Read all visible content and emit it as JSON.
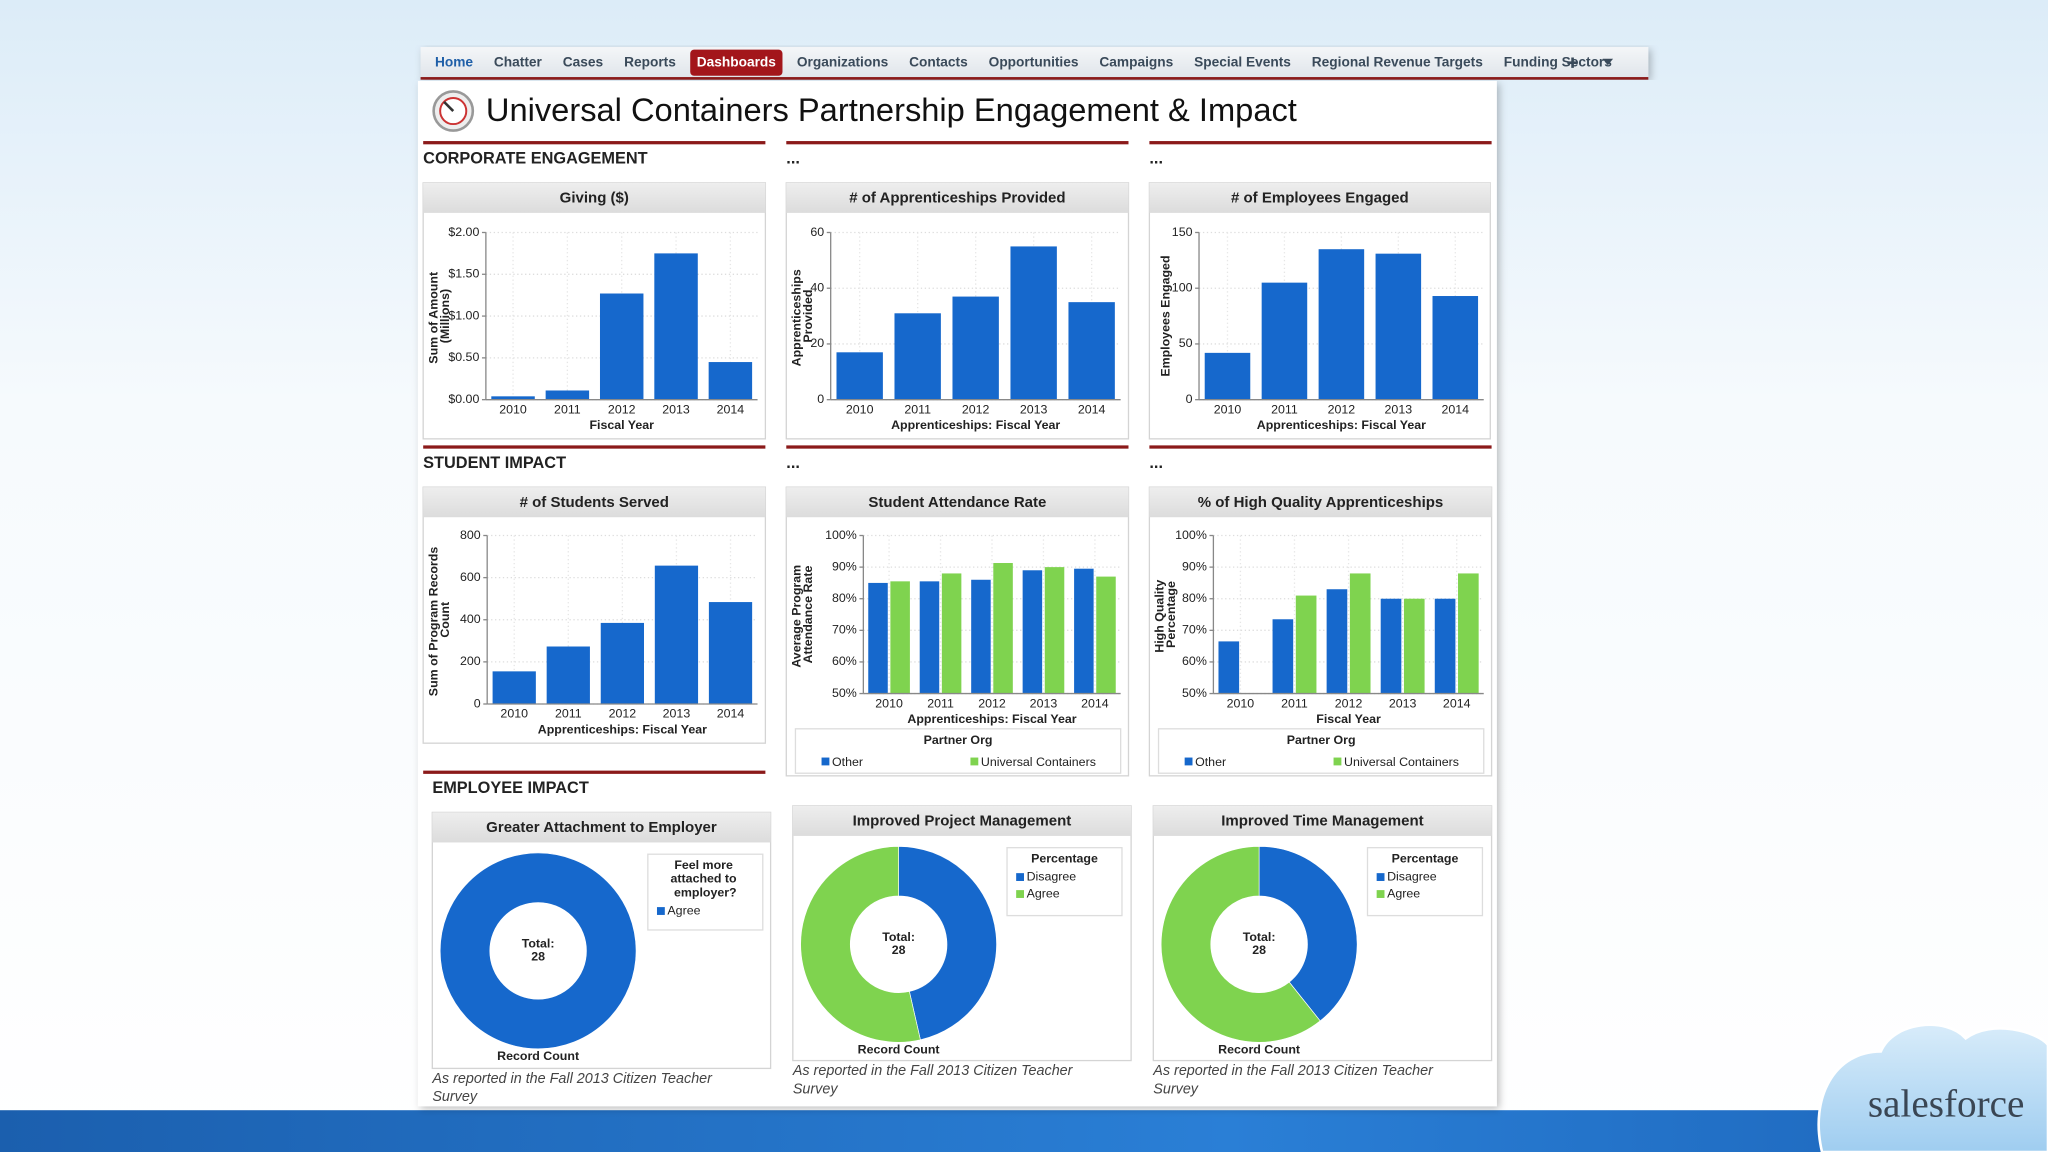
{
  "nav": [
    "Home",
    "Chatter",
    "Cases",
    "Reports",
    "Dashboards",
    "Organizations",
    "Contacts",
    "Opportunities",
    "Campaigns",
    "Special Events",
    "Regional Revenue Targets",
    "Funding Sectors"
  ],
  "active_nav": 4,
  "title": "Universal Containers Partnership Engagement & Impact",
  "section_headers": [
    "CORPORATE ENGAGEMENT",
    "...",
    "...",
    "STUDENT IMPACT",
    "...",
    "...",
    "EMPLOYEE IMPACT"
  ],
  "brand": "salesforce",
  "chart_data": [
    {
      "type": "bar",
      "title": "Giving ($)",
      "y_label": "Sum of Amount (Millions)",
      "x_label": "Fiscal Year",
      "categories": [
        "2010",
        "2011",
        "2012",
        "2013",
        "2014"
      ],
      "values": [
        0.04,
        0.11,
        1.27,
        1.75,
        0.45
      ],
      "color": "#1668cc",
      "ylim": [
        0,
        2
      ],
      "yticks": [
        {
          "value": 0,
          "label": "$0.00"
        },
        {
          "value": 0.5,
          "label": "$0.50"
        },
        {
          "value": 1,
          "label": "$1.00"
        },
        {
          "value": 1.5,
          "label": "$1.50"
        },
        {
          "value": 2,
          "label": "$2.00"
        }
      ],
      "grid": true
    },
    {
      "type": "bar",
      "title": "# of Apprenticeships Provided",
      "y_label": "Apprenticeships Provided",
      "x_label": "Apprenticeships: Fiscal Year",
      "categories": [
        "2010",
        "2011",
        "2012",
        "2013",
        "2014"
      ],
      "values": [
        17,
        31,
        37,
        55,
        35
      ],
      "color": "#1668cc",
      "ylim": [
        0,
        60
      ],
      "yticks": [
        0,
        20,
        40,
        60
      ],
      "grid": true
    },
    {
      "type": "bar",
      "title": "# of Employees Engaged",
      "y_label": "Employees Engaged",
      "x_label": "Apprenticeships: Fiscal Year",
      "categories": [
        "2010",
        "2011",
        "2012",
        "2013",
        "2014"
      ],
      "values": [
        42,
        105,
        135,
        131,
        93
      ],
      "color": "#1668cc",
      "ylim": [
        0,
        150
      ],
      "yticks": [
        0,
        50,
        100,
        150
      ],
      "grid": true
    },
    {
      "type": "bar",
      "title": "# of Students Served",
      "y_label": "Sum of Program Records Count",
      "x_label": "Apprenticeships: Fiscal Year",
      "categories": [
        "2010",
        "2011",
        "2012",
        "2013",
        "2014"
      ],
      "values": [
        155,
        273,
        385,
        657,
        484
      ],
      "color": "#1668cc",
      "ylim": [
        0,
        800
      ],
      "yticks": [
        0,
        200,
        400,
        600,
        800
      ],
      "grid": true
    },
    {
      "type": "bar",
      "title": "Student Attendance Rate",
      "y_label": "Average Program Attendance Rate",
      "x_label": "Apprenticeships: Fiscal Year",
      "categories": [
        "2010",
        "2011",
        "2012",
        "2013",
        "2014"
      ],
      "legend_title": "Partner Org",
      "series": [
        {
          "name": "Other",
          "color": "#1668cc",
          "values": [
            85,
            85.5,
            86,
            89,
            89.5
          ]
        },
        {
          "name": "Universal Containers",
          "color": "#7fd34f",
          "values": [
            85.5,
            88,
            91.3,
            90,
            87
          ]
        }
      ],
      "ylim": [
        50,
        100
      ],
      "yticks": [
        {
          "value": 50,
          "label": "50%"
        },
        {
          "value": 60,
          "label": "60%"
        },
        {
          "value": 70,
          "label": "70%"
        },
        {
          "value": 80,
          "label": "80%"
        },
        {
          "value": 90,
          "label": "90%"
        },
        {
          "value": 100,
          "label": "100%"
        }
      ],
      "grid": true
    },
    {
      "type": "bar",
      "title": "% of High Quality Apprenticeships",
      "y_label": "High Quality Percentage",
      "x_label": "Fiscal Year",
      "categories": [
        "2010",
        "2011",
        "2012",
        "2013",
        "2014"
      ],
      "legend_title": "Partner Org",
      "series": [
        {
          "name": "Other",
          "color": "#1668cc",
          "values": [
            66.5,
            73.5,
            83,
            80,
            80
          ]
        },
        {
          "name": "Universal Containers",
          "color": "#7fd34f",
          "values": [
            null,
            81,
            88,
            80,
            88
          ]
        }
      ],
      "ylim": [
        50,
        100
      ],
      "yticks": [
        {
          "value": 50,
          "label": "50%"
        },
        {
          "value": 60,
          "label": "60%"
        },
        {
          "value": 70,
          "label": "70%"
        },
        {
          "value": 80,
          "label": "80%"
        },
        {
          "value": 90,
          "label": "90%"
        },
        {
          "value": 100,
          "label": "100%"
        }
      ],
      "grid": true
    },
    {
      "type": "donut",
      "title": "Greater Attachment to Employer",
      "legend_title": "Feel more attached to employer?",
      "categories": [
        "Agree"
      ],
      "values": [
        28
      ],
      "colors": [
        "#1668cc"
      ],
      "center_label": "Total:",
      "total": 28,
      "x_label": "Record Count",
      "note": "As reported in the Fall 2013 Citizen Teacher Survey"
    },
    {
      "type": "donut",
      "title": "Improved Project Management",
      "legend_title": "Percentage",
      "categories": [
        "Disagree",
        "Agree"
      ],
      "values": [
        13,
        15
      ],
      "colors": [
        "#1668cc",
        "#7fd34f"
      ],
      "center_label": "Total:",
      "total": 28,
      "x_label": "Record Count",
      "note": "As reported in the Fall 2013 Citizen Teacher Survey"
    },
    {
      "type": "donut",
      "title": "Improved Time Management",
      "legend_title": "Percentage",
      "categories": [
        "Disagree",
        "Agree"
      ],
      "values": [
        11,
        17
      ],
      "colors": [
        "#1668cc",
        "#7fd34f"
      ],
      "center_label": "Total:",
      "total": 28,
      "x_label": "Record Count",
      "note": "As reported in the Fall 2013 Citizen Teacher Survey"
    }
  ]
}
